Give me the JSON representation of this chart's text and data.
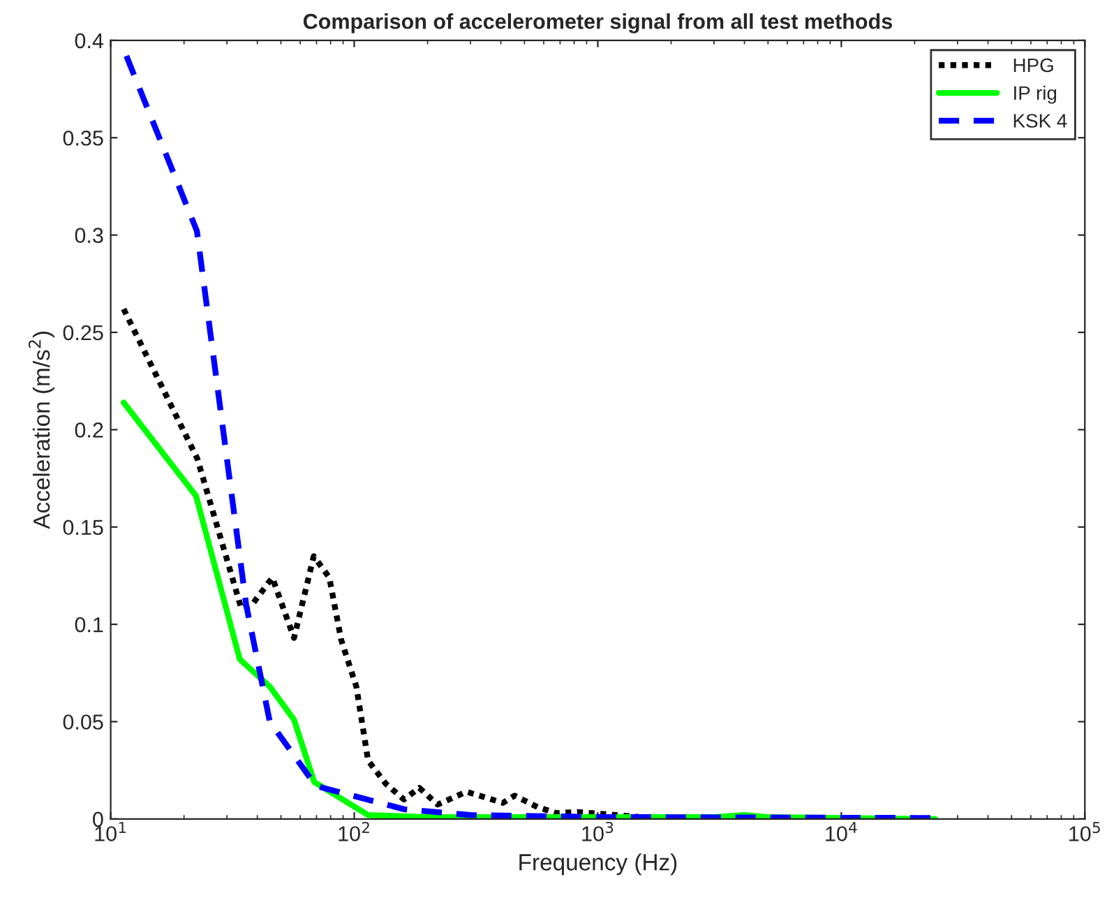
{
  "chart_data": {
    "type": "line",
    "title": "Comparison of accelerometer signal from all test methods",
    "xlabel": "Frequency (Hz)",
    "ylabel": "Acceleration (m/s$^{2}$)",
    "log": "x",
    "xlim": [
      10,
      100000
    ],
    "xticks": [
      {
        "value": 10,
        "label": "10$^{1}$"
      },
      {
        "value": 100,
        "label": "10$^{2}$"
      },
      {
        "value": 1000,
        "label": "10$^{3}$"
      },
      {
        "value": 10000,
        "label": "10$^{4}$"
      },
      {
        "value": 100000,
        "label": "10$^{5}$"
      }
    ],
    "ylim": [
      0,
      0.4
    ],
    "yticks": [
      0,
      0.05,
      0.1,
      0.15,
      0.2,
      0.25,
      0.3,
      0.35,
      0.4
    ],
    "grid": false,
    "legend": "top right",
    "series": [
      {
        "name": "HPG",
        "color": "#000000",
        "line_style": "dotted",
        "x": [
          11.3,
          22.7,
          34.4,
          38,
          46.1,
          56.6,
          68.2,
          79,
          88.4,
          102,
          114,
          135,
          160,
          185,
          220,
          289,
          408,
          456,
          568,
          677,
          826,
          1047,
          1496
        ],
        "values": [
          0.262,
          0.185,
          0.108,
          0.11,
          0.124,
          0.093,
          0.135,
          0.124,
          0.092,
          0.068,
          0.03,
          0.018,
          0.01,
          0.016,
          0.0074,
          0.014,
          0.0083,
          0.012,
          0.006,
          0.003,
          0.0036,
          0.0026,
          0.001
        ]
      },
      {
        "name": "IP rig",
        "color": "#00ff00",
        "line_style": "solid",
        "x": [
          11.3,
          22.4,
          33.9,
          45,
          56.6,
          68.5,
          114,
          200,
          1000,
          3000,
          4000,
          5000,
          10000,
          24300
        ],
        "values": [
          0.214,
          0.166,
          0.082,
          0.068,
          0.051,
          0.019,
          0.002,
          0.001,
          0.001,
          0.001,
          0.002,
          0.001,
          0.0005,
          0
        ]
      },
      {
        "name": "KSK 4",
        "color": "#0000ff",
        "line_style": "dashed",
        "x": [
          11.6,
          22.6,
          36,
          45,
          69.6,
          160,
          300,
          1000,
          24300
        ],
        "values": [
          0.392,
          0.302,
          0.11,
          0.05,
          0.017,
          0.005,
          0.002,
          0.001,
          0.0005
        ]
      }
    ]
  }
}
